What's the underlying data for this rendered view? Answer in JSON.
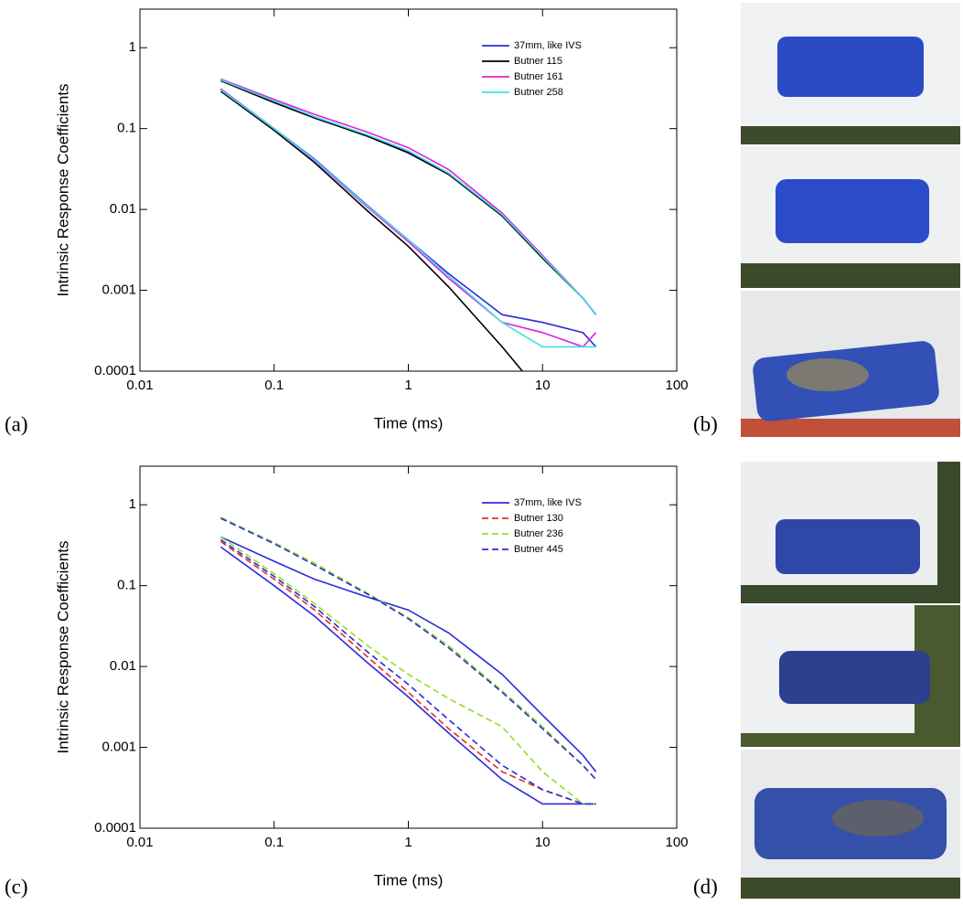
{
  "panel_labels": [
    "(a)",
    "(b)",
    "(c)",
    "(d)"
  ],
  "chart_data": [
    {
      "type": "line",
      "xlabel": "Time (ms)",
      "ylabel": "Intrinsic Response Coefficients",
      "log_x": true,
      "log_y": true,
      "xlim": [
        0.01,
        100
      ],
      "xticks": [
        0.01,
        0.1,
        1,
        10,
        100
      ],
      "ylim": [
        0.0001,
        3
      ],
      "yticks": [
        0.0001,
        0.001,
        0.01,
        0.1,
        1
      ],
      "x": [
        0.04,
        0.1,
        0.2,
        0.5,
        1,
        2,
        5,
        10,
        20,
        25
      ],
      "series": [
        {
          "name": "37mm, like IVS",
          "color": "#2b2bd9",
          "dash": false,
          "curves": [
            [
              0.4,
              0.22,
              0.14,
              0.082,
              0.052,
              0.028,
              0.0085,
              0.0026,
              0.0008,
              0.0005
            ],
            [
              0.3,
              0.1,
              0.042,
              0.011,
              0.0042,
              0.0016,
              0.0005,
              0.0004,
              0.0003,
              0.0002
            ]
          ]
        },
        {
          "name": "Butner 115",
          "color": "#000000",
          "dash": false,
          "curves": [
            [
              0.39,
              0.21,
              0.135,
              0.08,
              0.05,
              0.027,
              0.0083,
              0.0025,
              0.0008,
              0.0005
            ],
            [
              0.29,
              0.095,
              0.038,
              0.0095,
              0.0035,
              0.0011,
              0.0002,
              5e-05,
              5e-05,
              5e-05
            ]
          ]
        },
        {
          "name": "Butner 161",
          "color": "#e020e0",
          "dash": false,
          "curves": [
            [
              0.41,
              0.23,
              0.15,
              0.09,
              0.058,
              0.031,
              0.009,
              0.0027,
              0.0008,
              0.0005
            ],
            [
              0.31,
              0.1,
              0.04,
              0.0105,
              0.004,
              0.0014,
              0.0004,
              0.0003,
              0.0002,
              0.0003
            ]
          ]
        },
        {
          "name": "Butner 258",
          "color": "#40e0e8",
          "dash": false,
          "curves": [
            [
              0.4,
              0.22,
              0.14,
              0.083,
              0.053,
              0.028,
              0.0086,
              0.0026,
              0.0008,
              0.0005
            ],
            [
              0.3,
              0.1,
              0.041,
              0.0108,
              0.0042,
              0.0015,
              0.0004,
              0.0002,
              0.0002,
              0.0002
            ]
          ]
        }
      ]
    },
    {
      "type": "line",
      "xlabel": "Time (ms)",
      "ylabel": "Intrinsic Response Coefficients",
      "log_x": true,
      "log_y": true,
      "xlim": [
        0.01,
        100
      ],
      "xticks": [
        0.01,
        0.1,
        1,
        10,
        100
      ],
      "ylim": [
        0.0001,
        3
      ],
      "yticks": [
        0.0001,
        0.001,
        0.01,
        0.1,
        1
      ],
      "x": [
        0.04,
        0.1,
        0.2,
        0.5,
        1,
        2,
        5,
        10,
        20,
        25
      ],
      "series": [
        {
          "name": "37mm, like IVS",
          "color": "#2b2bd9",
          "dash": false,
          "curves": [
            [
              0.4,
              0.2,
              0.12,
              0.072,
              0.05,
              0.026,
              0.008,
              0.0025,
              0.0008,
              0.0005
            ],
            [
              0.3,
              0.1,
              0.042,
              0.011,
              0.0042,
              0.0015,
              0.0004,
              0.0002,
              0.0002,
              0.0002
            ]
          ]
        },
        {
          "name": "Butner 130",
          "color": "#e03020",
          "dash": true,
          "curves": [
            [
              0.35,
              0.12,
              0.05,
              0.013,
              0.0048,
              0.0017,
              0.0005,
              0.0003,
              0.0002,
              0.0002
            ]
          ]
        },
        {
          "name": "Butner 236",
          "color": "#90e020",
          "dash": true,
          "curves": [
            [
              0.7,
              0.34,
              0.19,
              0.08,
              0.04,
              0.018,
              0.005,
              0.0018,
              0.0006,
              0.0004
            ],
            [
              0.4,
              0.14,
              0.06,
              0.018,
              0.008,
              0.004,
              0.0018,
              0.0005,
              0.0002,
              0.0002
            ]
          ]
        },
        {
          "name": "Butner 445",
          "color": "#2b2bd9",
          "dash": true,
          "curves": [
            [
              0.68,
              0.33,
              0.18,
              0.078,
              0.039,
              0.017,
              0.0048,
              0.0017,
              0.0006,
              0.0004
            ],
            [
              0.37,
              0.13,
              0.055,
              0.015,
              0.006,
              0.0022,
              0.0006,
              0.0003,
              0.0002,
              0.0002
            ]
          ]
        }
      ]
    }
  ]
}
